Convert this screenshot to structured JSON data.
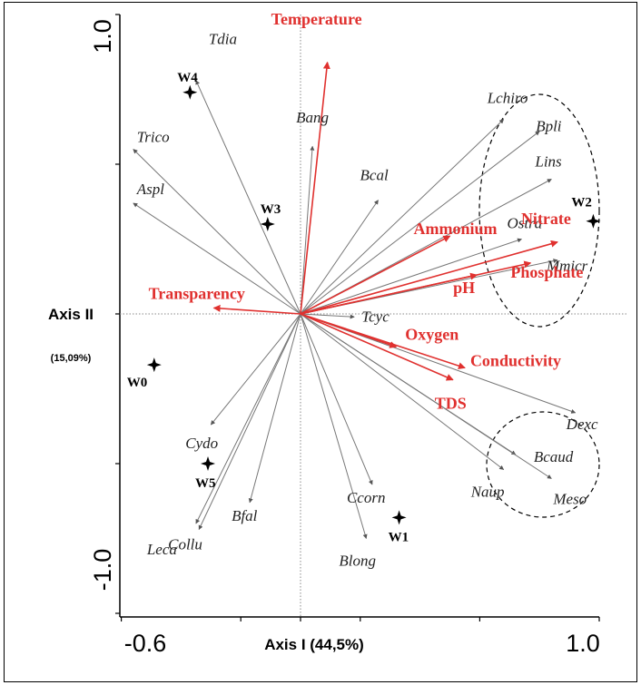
{
  "chart_data": {
    "type": "scatter",
    "subtype": "ordination-biplot",
    "xlabel": "Axis I (44,5%)",
    "ylabel": "Axis II",
    "ylabel_note": "(15,09%)",
    "xlim": [
      -0.6,
      1.0
    ],
    "ylim": [
      -1.0,
      1.0
    ],
    "x_ticks": [
      "-0.6",
      "1.0"
    ],
    "y_ticks": [
      "1.0",
      "-1.0"
    ],
    "species": [
      {
        "name": "Tdia",
        "x": -0.35,
        "y": 0.78
      },
      {
        "name": "Trico",
        "x": -0.56,
        "y": 0.55
      },
      {
        "name": "Aspl",
        "x": -0.56,
        "y": 0.37
      },
      {
        "name": "Bang",
        "x": 0.04,
        "y": 0.56
      },
      {
        "name": "Bcal",
        "x": 0.26,
        "y": 0.38
      },
      {
        "name": "Lchiro",
        "x": 0.68,
        "y": 0.65
      },
      {
        "name": "Bpli",
        "x": 0.8,
        "y": 0.61
      },
      {
        "name": "Lins",
        "x": 0.84,
        "y": 0.45
      },
      {
        "name": "Ostra",
        "x": 0.74,
        "y": 0.25
      },
      {
        "name": "Mmicr",
        "x": 0.86,
        "y": 0.18
      },
      {
        "name": "Tcyc",
        "x": 0.18,
        "y": -0.01
      },
      {
        "name": "Dexc",
        "x": 0.92,
        "y": -0.33
      },
      {
        "name": "Bcaud",
        "x": 0.72,
        "y": -0.47
      },
      {
        "name": "Naup",
        "x": 0.68,
        "y": -0.52
      },
      {
        "name": "Meso",
        "x": 0.84,
        "y": -0.55
      },
      {
        "name": "Cydo",
        "x": -0.3,
        "y": -0.37
      },
      {
        "name": "Leca",
        "x": -0.35,
        "y": -0.7
      },
      {
        "name": "Collu",
        "x": -0.34,
        "y": -0.72
      },
      {
        "name": "Bfal",
        "x": -0.17,
        "y": -0.63
      },
      {
        "name": "Ccorn",
        "x": 0.24,
        "y": -0.57
      },
      {
        "name": "Blong",
        "x": 0.22,
        "y": -0.75
      }
    ],
    "environment": [
      {
        "name": "Temperature",
        "x": 0.09,
        "y": 0.84
      },
      {
        "name": "Transparency",
        "x": -0.29,
        "y": 0.02
      },
      {
        "name": "Ammonium",
        "x": 0.5,
        "y": 0.26
      },
      {
        "name": "Nitrate",
        "x": 0.86,
        "y": 0.24
      },
      {
        "name": "pH",
        "x": 0.59,
        "y": 0.13
      },
      {
        "name": "Phosphate",
        "x": 0.77,
        "y": 0.17
      },
      {
        "name": "Oxygen",
        "x": 0.32,
        "y": -0.11
      },
      {
        "name": "Conductivity",
        "x": 0.55,
        "y": -0.18
      },
      {
        "name": "TDS",
        "x": 0.51,
        "y": -0.22
      }
    ],
    "sites": [
      {
        "name": "W0",
        "x": -0.49,
        "y": -0.17
      },
      {
        "name": "W1",
        "x": 0.33,
        "y": -0.68
      },
      {
        "name": "W2",
        "x": 0.98,
        "y": 0.31
      },
      {
        "name": "W3",
        "x": -0.11,
        "y": 0.3
      },
      {
        "name": "W4",
        "x": -0.37,
        "y": 0.74
      },
      {
        "name": "W5",
        "x": -0.31,
        "y": -0.5
      }
    ],
    "colors": {
      "environment": "#e0312f",
      "species": "#777777",
      "sites": "#000000",
      "zero_lines": "#888888"
    },
    "grid": false,
    "annotations": [
      "dashed-ellipse-upper-right",
      "dashed-circle-lower-right"
    ]
  }
}
